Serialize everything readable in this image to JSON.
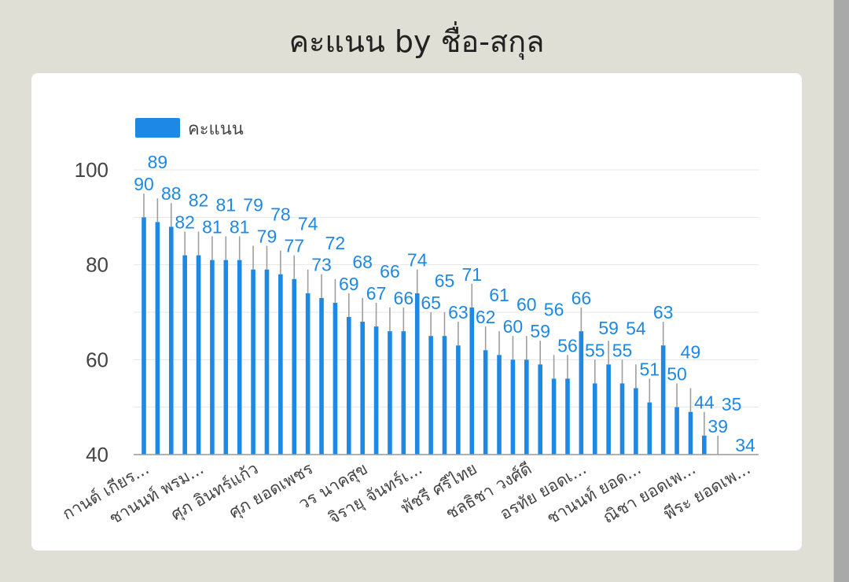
{
  "chart_data": {
    "type": "bar",
    "title": "คะแนน by ชื่อ-สกุล",
    "legend": {
      "label": "คะแนน",
      "placement": "top-left"
    },
    "series": [
      {
        "name": "คะแนน",
        "values": [
          90,
          89,
          88,
          82,
          82,
          81,
          81,
          81,
          79,
          79,
          78,
          77,
          74,
          73,
          72,
          69,
          68,
          67,
          66,
          66,
          74,
          65,
          65,
          63,
          71,
          62,
          61,
          60,
          60,
          59,
          56,
          56,
          66,
          55,
          59,
          55,
          54,
          51,
          63,
          50,
          49,
          44,
          39,
          35,
          34
        ],
        "error_plus": 5
      }
    ],
    "x_tick_labels": [
      {
        "index": 0,
        "label": "กานต์ เกียร..."
      },
      {
        "index": 4,
        "label": "ชานนท์ พรม..."
      },
      {
        "index": 8,
        "label": "ศุภ อินทร์แก้ว"
      },
      {
        "index": 12,
        "label": "ศุภ ยอดเพชร"
      },
      {
        "index": 16,
        "label": "วร นาคสุข"
      },
      {
        "index": 20,
        "label": "จิรายุ จันทร์เ..."
      },
      {
        "index": 24,
        "label": "พัชรี ศรีไทย"
      },
      {
        "index": 28,
        "label": "ชลธิชา วงศ์ดี"
      },
      {
        "index": 32,
        "label": "อรทัย ยอดเ..."
      },
      {
        "index": 36,
        "label": "ชานนท์ ยอด..."
      },
      {
        "index": 40,
        "label": "ณิชา ยอดเพ..."
      },
      {
        "index": 44,
        "label": "พีระ ยอดเพ..."
      }
    ],
    "ylim": [
      40,
      100
    ],
    "y_ticks": [
      40,
      60,
      80,
      100
    ],
    "grid": true,
    "colors": {
      "bar": "#1e88e5",
      "error": "#9e9e9e",
      "label": "#1e88e5",
      "grid": "#e6e6e6"
    }
  }
}
